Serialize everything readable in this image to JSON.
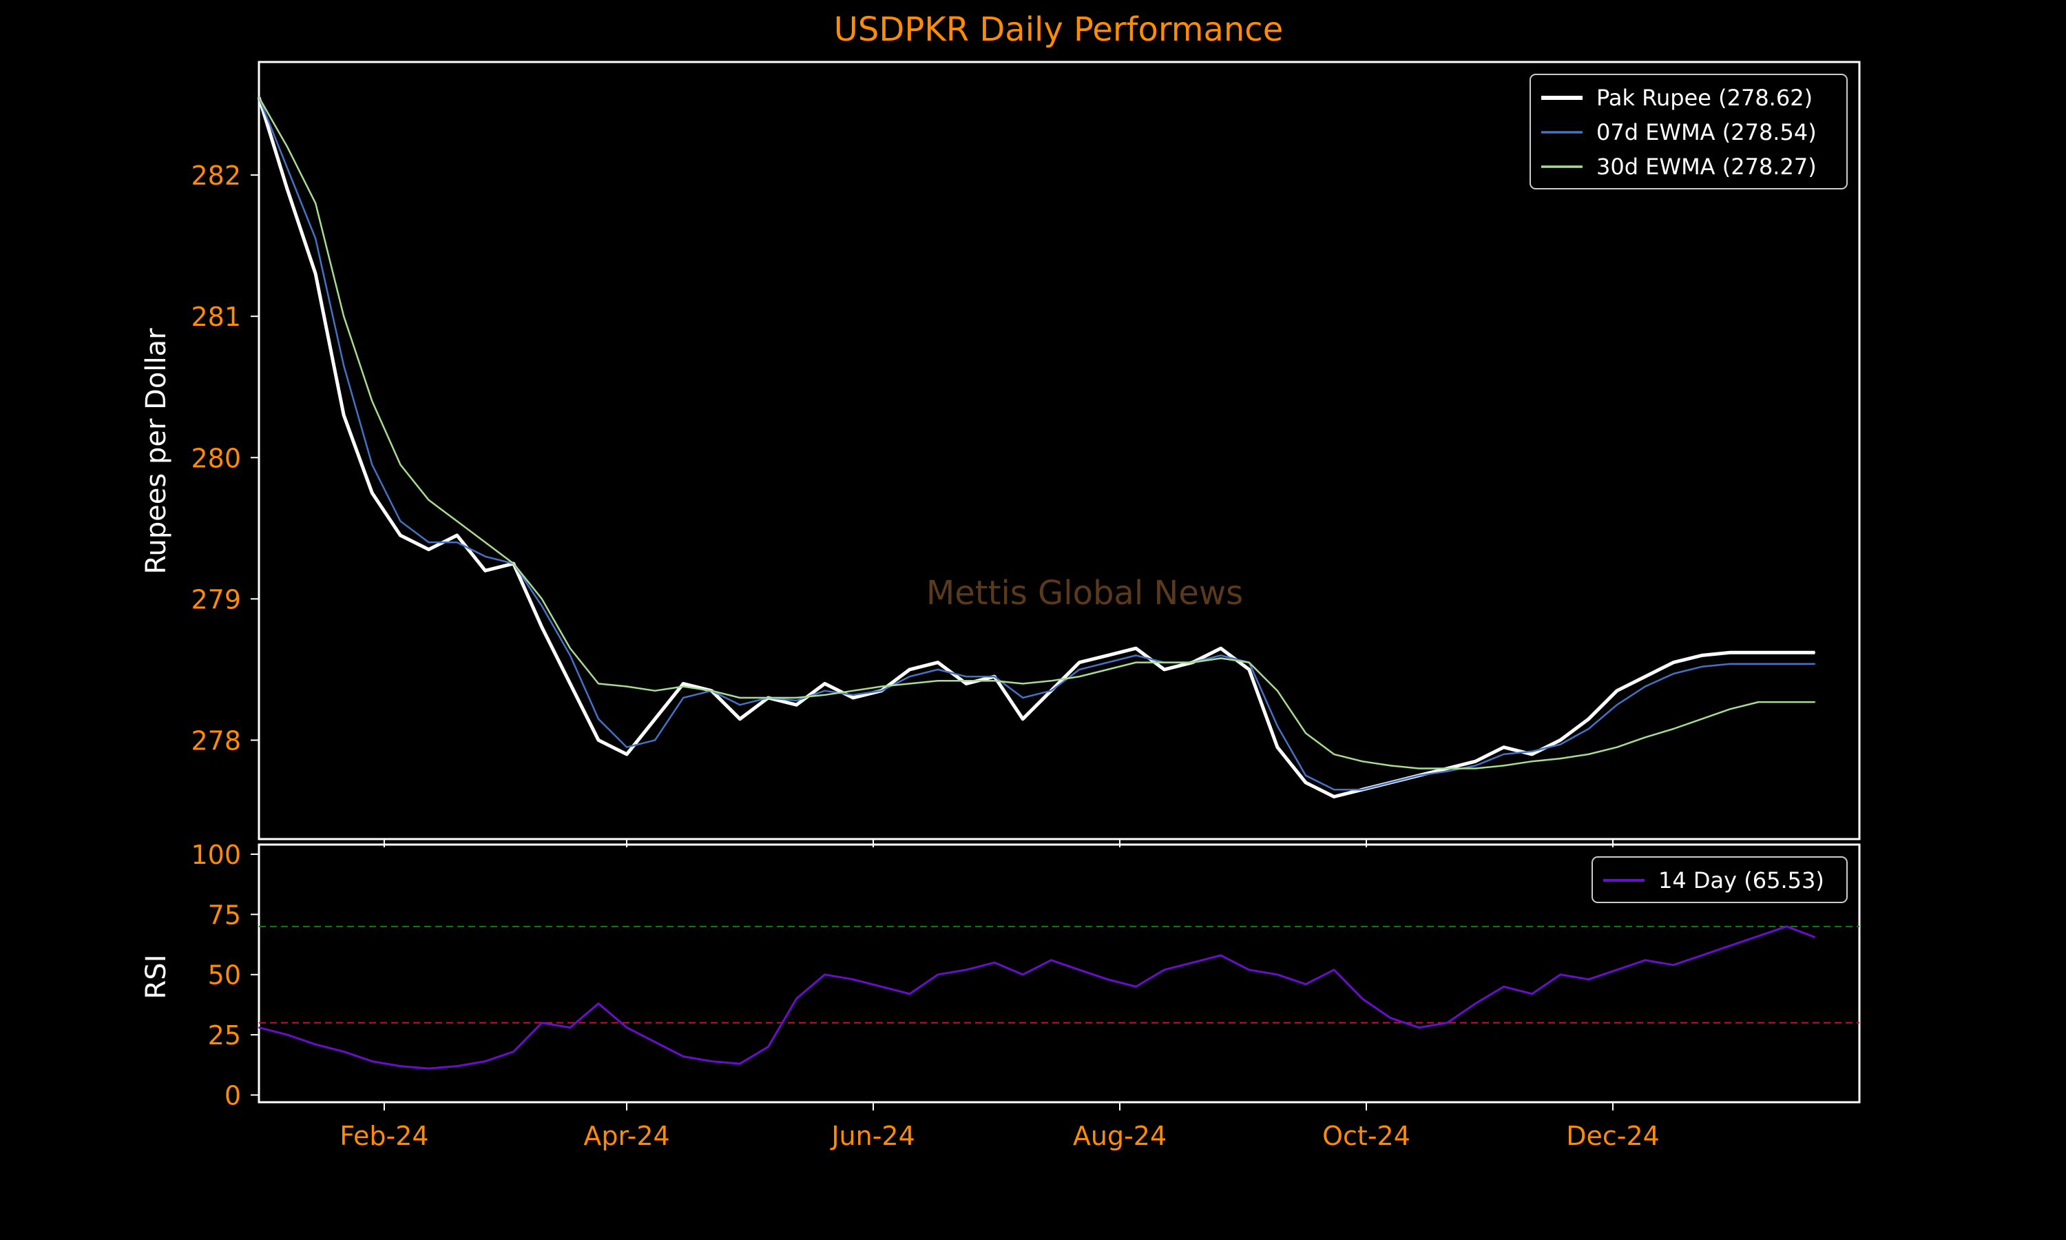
{
  "colors": {
    "background": "#000000",
    "title": "#ff8c00",
    "tick_labels": "#ff8c00",
    "axis_labels": "#ffffff",
    "frame": "#ffffff",
    "price": "#ffffff",
    "ewma7": "#4472c4",
    "ewma30": "#a9dc8f",
    "rsi": "#6a0dcc",
    "overbought": "#1a7a1a",
    "oversold": "#cc1030",
    "watermark": "#5a3a1a"
  },
  "watermark": "Mettis Global News",
  "chart_data": [
    {
      "type": "line",
      "title": "USDPKR Daily Performance",
      "xlabel": "",
      "ylabel": "Rupees per Dollar",
      "x_ticks": [
        "Feb-24",
        "Apr-24",
        "Jun-24",
        "Aug-24",
        "Oct-24",
        "Dec-24"
      ],
      "x_range": [
        "2024-01-01",
        "2025-01-31"
      ],
      "ylim": [
        277.3,
        282.8
      ],
      "y_ticks": [
        278,
        279,
        280,
        281,
        282
      ],
      "grid": false,
      "legend_position": "top-right",
      "x": [
        "2024-01-01",
        "2024-01-08",
        "2024-01-15",
        "2024-01-22",
        "2024-01-29",
        "2024-02-05",
        "2024-02-12",
        "2024-02-19",
        "2024-02-26",
        "2024-03-04",
        "2024-03-11",
        "2024-03-18",
        "2024-03-25",
        "2024-04-01",
        "2024-04-08",
        "2024-04-15",
        "2024-04-22",
        "2024-04-29",
        "2024-05-06",
        "2024-05-13",
        "2024-05-20",
        "2024-05-27",
        "2024-06-03",
        "2024-06-10",
        "2024-06-17",
        "2024-06-24",
        "2024-07-01",
        "2024-07-08",
        "2024-07-15",
        "2024-07-22",
        "2024-07-29",
        "2024-08-05",
        "2024-08-12",
        "2024-08-19",
        "2024-08-26",
        "2024-09-02",
        "2024-09-09",
        "2024-09-16",
        "2024-09-23",
        "2024-09-30",
        "2024-10-07",
        "2024-10-14",
        "2024-10-21",
        "2024-10-28",
        "2024-11-04",
        "2024-11-11",
        "2024-11-18",
        "2024-11-25",
        "2024-12-02",
        "2024-12-09",
        "2024-12-16",
        "2024-12-23",
        "2024-12-30",
        "2025-01-06",
        "2025-01-13",
        "2025-01-20"
      ],
      "series": [
        {
          "name": "Pak Rupee (278.62)",
          "values": [
            282.55,
            281.9,
            281.3,
            280.3,
            279.75,
            279.45,
            279.35,
            279.45,
            279.2,
            279.25,
            278.8,
            278.4,
            278.0,
            277.9,
            278.15,
            278.4,
            278.35,
            278.15,
            278.3,
            278.25,
            278.4,
            278.3,
            278.35,
            278.5,
            278.55,
            278.4,
            278.45,
            278.15,
            278.35,
            278.55,
            278.6,
            278.65,
            278.5,
            278.55,
            278.65,
            278.5,
            277.95,
            277.7,
            277.6,
            277.65,
            277.7,
            277.75,
            277.8,
            277.85,
            277.95,
            277.9,
            278.0,
            278.15,
            278.35,
            278.45,
            278.55,
            278.6,
            278.62,
            278.62,
            278.62,
            278.62
          ]
        },
        {
          "name": "07d EWMA (278.54)",
          "values": [
            282.55,
            282.05,
            281.55,
            280.65,
            279.95,
            279.55,
            279.4,
            279.4,
            279.3,
            279.25,
            278.95,
            278.6,
            278.15,
            277.95,
            278.0,
            278.3,
            278.35,
            278.25,
            278.3,
            278.28,
            278.35,
            278.32,
            278.35,
            278.45,
            278.5,
            278.45,
            278.45,
            278.3,
            278.35,
            278.5,
            278.55,
            278.6,
            278.55,
            278.55,
            278.6,
            278.55,
            278.1,
            277.75,
            277.65,
            277.65,
            277.7,
            277.75,
            277.78,
            277.82,
            277.9,
            277.92,
            277.97,
            278.08,
            278.25,
            278.38,
            278.47,
            278.52,
            278.54,
            278.54,
            278.54,
            278.54
          ]
        },
        {
          "name": "30d EWMA (278.27)",
          "values": [
            282.55,
            282.2,
            281.8,
            281.0,
            280.4,
            279.95,
            279.7,
            279.55,
            279.4,
            279.25,
            279.0,
            278.65,
            278.4,
            278.38,
            278.35,
            278.38,
            278.35,
            278.3,
            278.3,
            278.3,
            278.32,
            278.35,
            278.38,
            278.4,
            278.42,
            278.42,
            278.42,
            278.4,
            278.42,
            278.45,
            278.5,
            278.55,
            278.55,
            278.55,
            278.58,
            278.55,
            278.35,
            278.05,
            277.9,
            277.85,
            277.82,
            277.8,
            277.8,
            277.8,
            277.82,
            277.85,
            277.87,
            277.9,
            277.95,
            278.02,
            278.08,
            278.15,
            278.22,
            278.27,
            278.27,
            278.27
          ]
        }
      ]
    },
    {
      "type": "line",
      "title": "",
      "xlabel": "",
      "ylabel": "RSI",
      "x_ticks": [
        "Feb-24",
        "Apr-24",
        "Jun-24",
        "Aug-24",
        "Oct-24",
        "Dec-24"
      ],
      "ylim": [
        -3,
        104
      ],
      "y_ticks": [
        0,
        25,
        50,
        75,
        100
      ],
      "reference_lines": [
        70,
        30
      ],
      "grid": false,
      "legend_position": "top-right",
      "x": [
        "2024-01-01",
        "2024-01-08",
        "2024-01-15",
        "2024-01-22",
        "2024-01-29",
        "2024-02-05",
        "2024-02-12",
        "2024-02-19",
        "2024-02-26",
        "2024-03-04",
        "2024-03-11",
        "2024-03-18",
        "2024-03-25",
        "2024-04-01",
        "2024-04-08",
        "2024-04-15",
        "2024-04-22",
        "2024-04-29",
        "2024-05-06",
        "2024-05-13",
        "2024-05-20",
        "2024-05-27",
        "2024-06-03",
        "2024-06-10",
        "2024-06-17",
        "2024-06-24",
        "2024-07-01",
        "2024-07-08",
        "2024-07-15",
        "2024-07-22",
        "2024-07-29",
        "2024-08-05",
        "2024-08-12",
        "2024-08-19",
        "2024-08-26",
        "2024-09-02",
        "2024-09-09",
        "2024-09-16",
        "2024-09-23",
        "2024-09-30",
        "2024-10-07",
        "2024-10-14",
        "2024-10-21",
        "2024-10-28",
        "2024-11-04",
        "2024-11-11",
        "2024-11-18",
        "2024-11-25",
        "2024-12-02",
        "2024-12-09",
        "2024-12-16",
        "2024-12-23",
        "2024-12-30",
        "2025-01-06",
        "2025-01-13",
        "2025-01-20"
      ],
      "series": [
        {
          "name": "14 Day (65.53)",
          "values": [
            28,
            25,
            21,
            18,
            14,
            12,
            11,
            12,
            14,
            18,
            30,
            28,
            38,
            28,
            22,
            16,
            14,
            13,
            20,
            40,
            50,
            48,
            45,
            42,
            50,
            52,
            55,
            50,
            56,
            52,
            48,
            45,
            52,
            55,
            58,
            52,
            50,
            46,
            52,
            40,
            32,
            28,
            30,
            38,
            45,
            42,
            50,
            48,
            52,
            56,
            54,
            58,
            62,
            66,
            70,
            65.53
          ]
        }
      ]
    }
  ]
}
